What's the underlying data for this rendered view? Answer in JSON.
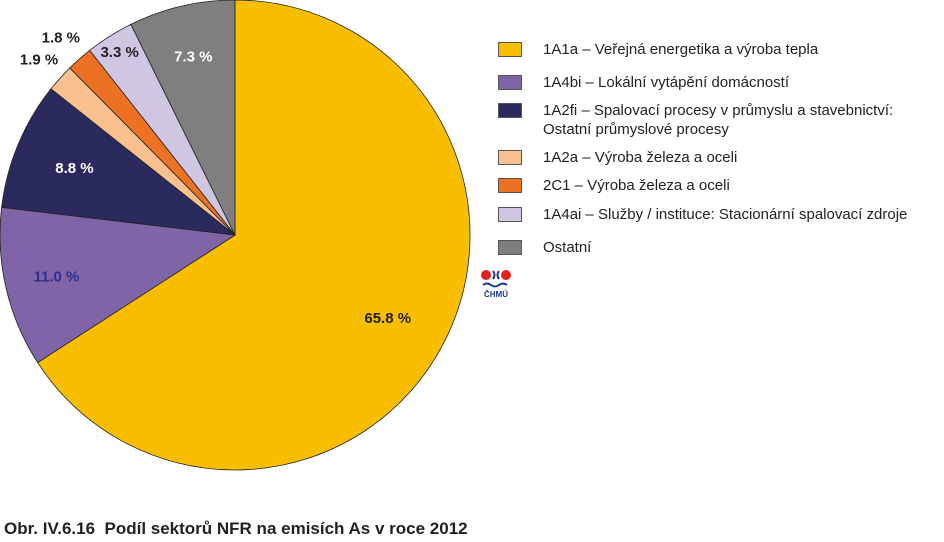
{
  "chart_data": {
    "type": "pie",
    "start_angle_deg": 0,
    "direction": "clockwise",
    "slices": [
      {
        "name": "1A1a – Veřejná energetika a výroba tepla",
        "value": 65.8,
        "label": "65.8 %",
        "color": "#F9BE00",
        "label_color": "#222222"
      },
      {
        "name": "1A4bi – Lokální vytápění domácností",
        "value": 11.0,
        "label": "11.0 %",
        "color": "#8064A8",
        "label_color": "#2E2E8C"
      },
      {
        "name": "1A2fi – Spalovací procesy v průmyslu a stavebnictví:\nOstatní průmyslové procesy",
        "value": 8.8,
        "label": "8.8 %",
        "color": "#2B2A5E",
        "label_color": "#FFFFFF"
      },
      {
        "name": "1A2a – Výroba železa a oceli",
        "value": 1.9,
        "label": "1.9 %",
        "color": "#FAC090",
        "label_color": "#222222"
      },
      {
        "name": "2C1 – Výroba železa a oceli",
        "value": 1.8,
        "label": "1.8 %",
        "color": "#EC7122",
        "label_color": "#222222"
      },
      {
        "name": "1A4ai – Služby / instituce: Stacionární spalovací zdroje",
        "value": 3.3,
        "label": "3.3 %",
        "color": "#CFC7E2",
        "label_color": "#222222"
      },
      {
        "name": "Ostatní",
        "value": 7.3,
        "label": "7.3 %",
        "color": "#7F7F7F",
        "label_color": "#FFFFFF"
      }
    ],
    "legend_placement": "right"
  },
  "logo_text": "ČHMÚ",
  "caption": "Obr. IV.6.16  Podíl sektorů NFR na emisích As v roce 2012"
}
